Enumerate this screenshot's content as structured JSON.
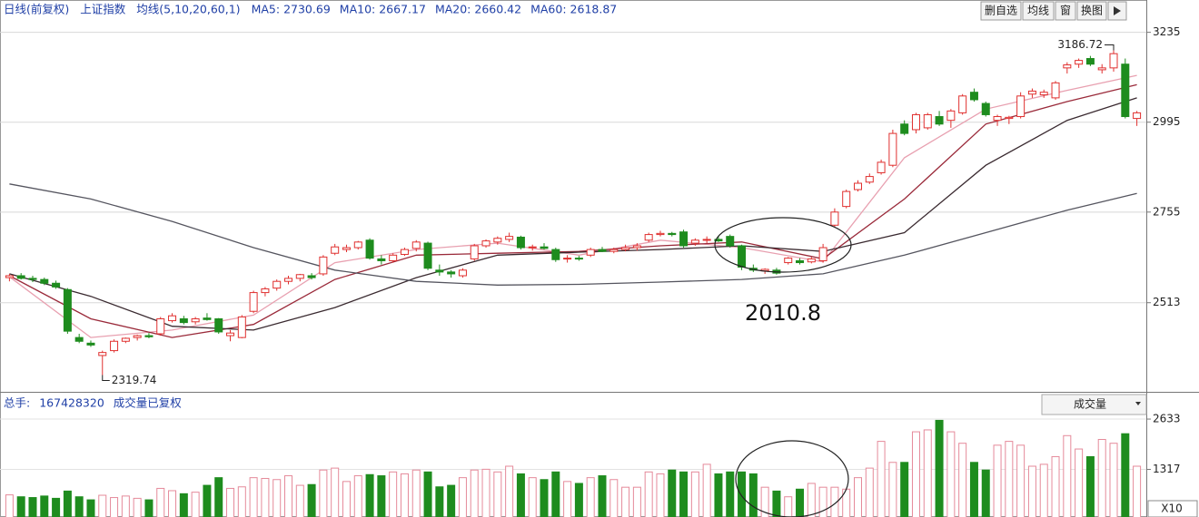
{
  "chart_data": {
    "type": "candlestick",
    "header": [
      "日线(前复权)",
      "上证指数",
      "均线(5,10,20,60,1)"
    ],
    "buttons": [
      "删自选",
      "均线",
      "窗",
      "换图"
    ],
    "up_color": "#e0302f",
    "down_color": "#1e8c1e",
    "ylim": [
      2275,
      3268
    ],
    "yticks": [
      2513,
      2755,
      2995,
      3235
    ],
    "grid": true,
    "high_label": "3186.72",
    "low_label": "2319.74",
    "annotation": "2010.8",
    "candles": {
      "open": [
        2580,
        2585,
        2578,
        2575,
        2565,
        2548,
        2420,
        2405,
        2372,
        2385,
        2410,
        2420,
        2425,
        2430,
        2465,
        2470,
        2462,
        2472,
        2470,
        2425,
        2420,
        2490,
        2540,
        2552,
        2570,
        2578,
        2585,
        2590,
        2645,
        2655,
        2660,
        2680,
        2630,
        2625,
        2642,
        2658,
        2672,
        2600,
        2595,
        2585,
        2630,
        2665,
        2675,
        2682,
        2688,
        2660,
        2662,
        2655,
        2630,
        2632,
        2640,
        2655,
        2650,
        2655,
        2660,
        2680,
        2695,
        2698,
        2702,
        2672,
        2680,
        2682,
        2690,
        2665,
        2605,
        2598,
        2600,
        2620,
        2625,
        2622,
        2625,
        2720,
        2770,
        2815,
        2835,
        2860,
        2880,
        2990,
        2975,
        2980,
        3010,
        3000,
        3020,
        3075,
        3045,
        3000,
        3005,
        3010,
        3070,
        3068,
        3060,
        3140,
        3150,
        3165,
        3135,
        3140,
        3150,
        3005
      ],
      "high": [
        2590,
        2592,
        2585,
        2580,
        2572,
        2552,
        2430,
        2412,
        2385,
        2415,
        2420,
        2428,
        2432,
        2475,
        2485,
        2478,
        2475,
        2485,
        2472,
        2440,
        2480,
        2545,
        2555,
        2575,
        2585,
        2590,
        2592,
        2640,
        2670,
        2668,
        2678,
        2685,
        2640,
        2645,
        2660,
        2680,
        2676,
        2615,
        2600,
        2605,
        2670,
        2682,
        2690,
        2700,
        2692,
        2668,
        2672,
        2660,
        2640,
        2638,
        2660,
        2662,
        2660,
        2668,
        2672,
        2700,
        2705,
        2702,
        2708,
        2685,
        2690,
        2692,
        2695,
        2668,
        2615,
        2605,
        2606,
        2635,
        2632,
        2635,
        2670,
        2765,
        2815,
        2840,
        2858,
        2895,
        2975,
        3000,
        3020,
        3020,
        3025,
        3030,
        3070,
        3085,
        3050,
        3015,
        3012,
        3075,
        3085,
        3082,
        3105,
        3155,
        3165,
        3172,
        3150,
        3186.72,
        3165,
        3025
      ],
      "low": [
        2570,
        2575,
        2568,
        2560,
        2550,
        2430,
        2405,
        2395,
        2319.74,
        2380,
        2405,
        2412,
        2418,
        2425,
        2460,
        2455,
        2455,
        2465,
        2430,
        2410,
        2418,
        2485,
        2530,
        2545,
        2562,
        2570,
        2575,
        2585,
        2640,
        2648,
        2655,
        2628,
        2615,
        2620,
        2638,
        2650,
        2600,
        2585,
        2580,
        2580,
        2625,
        2660,
        2668,
        2675,
        2655,
        2652,
        2655,
        2622,
        2620,
        2625,
        2635,
        2648,
        2645,
        2650,
        2652,
        2675,
        2690,
        2690,
        2660,
        2665,
        2672,
        2675,
        2660,
        2600,
        2595,
        2590,
        2588,
        2615,
        2615,
        2618,
        2620,
        2715,
        2765,
        2810,
        2830,
        2855,
        2875,
        2960,
        2965,
        2975,
        2985,
        2980,
        3015,
        3050,
        3010,
        2985,
        2990,
        3005,
        3060,
        3060,
        3055,
        3125,
        3140,
        3145,
        3125,
        3130,
        3005,
        2985
      ],
      "close": [
        2585,
        2578,
        2575,
        2565,
        2555,
        2437,
        2410,
        2400,
        2380,
        2410,
        2418,
        2425,
        2422,
        2470,
        2478,
        2460,
        2470,
        2468,
        2435,
        2432,
        2475,
        2540,
        2550,
        2570,
        2578,
        2588,
        2580,
        2635,
        2662,
        2660,
        2675,
        2632,
        2625,
        2640,
        2655,
        2675,
        2605,
        2595,
        2590,
        2600,
        2665,
        2678,
        2685,
        2690,
        2660,
        2662,
        2658,
        2628,
        2632,
        2630,
        2655,
        2650,
        2655,
        2660,
        2665,
        2695,
        2698,
        2695,
        2665,
        2680,
        2682,
        2678,
        2665,
        2608,
        2600,
        2602,
        2592,
        2632,
        2620,
        2630,
        2660,
        2755,
        2810,
        2832,
        2850,
        2888,
        2965,
        2965,
        3015,
        3015,
        2990,
        3025,
        3065,
        3055,
        3015,
        3010,
        3008,
        3065,
        3078,
        3075,
        3100,
        3148,
        3160,
        3150,
        3140,
        3178,
        3010,
        3020
      ]
    },
    "ma": [
      {
        "name": "MA5:",
        "readout": 2730.69,
        "color": "#e8a0b0",
        "x": [
          0,
          7,
          14,
          21,
          28,
          35,
          42,
          49,
          56,
          63,
          70,
          77,
          84,
          91,
          97
        ],
        "values": [
          2582,
          2420,
          2440,
          2480,
          2620,
          2655,
          2672,
          2640,
          2680,
          2660,
          2622,
          2900,
          3030,
          3080,
          3120
        ]
      },
      {
        "name": "MA10:",
        "readout": 2667.17,
        "color": "#9a2a3a",
        "x": [
          0,
          7,
          14,
          21,
          28,
          35,
          42,
          49,
          56,
          63,
          70,
          77,
          84,
          91,
          97
        ],
        "values": [
          2585,
          2470,
          2420,
          2455,
          2575,
          2640,
          2645,
          2650,
          2665,
          2675,
          2630,
          2790,
          2990,
          3050,
          3095
        ]
      },
      {
        "name": "MA20:",
        "readout": 2660.42,
        "color": "#3a2a30",
        "x": [
          0,
          7,
          14,
          21,
          28,
          35,
          42,
          49,
          56,
          63,
          70,
          77,
          84,
          91,
          97
        ],
        "values": [
          2590,
          2530,
          2450,
          2440,
          2500,
          2580,
          2640,
          2648,
          2655,
          2665,
          2650,
          2700,
          2880,
          3000,
          3060
        ]
      },
      {
        "name": "MA60:",
        "readout": 2618.87,
        "color": "#55555f",
        "x": [
          0,
          7,
          14,
          21,
          28,
          35,
          42,
          49,
          56,
          63,
          70,
          77,
          84,
          91,
          97
        ],
        "values": [
          2830,
          2790,
          2730,
          2660,
          2600,
          2570,
          2560,
          2562,
          2568,
          2575,
          2590,
          2640,
          2700,
          2760,
          2805
        ]
      }
    ],
    "volume": {
      "label": "总手:",
      "total": 167428320,
      "note": "成交量已复权",
      "selector": "成交量",
      "unit": "X10",
      "ylim": [
        0,
        2800
      ],
      "yticks": [
        1317,
        2633
      ],
      "values": [
        650,
        600,
        580,
        620,
        560,
        750,
        600,
        520,
        640,
        580,
        620,
        560,
        520,
        820,
        760,
        680,
        720,
        900,
        1100,
        820,
        860,
        1100,
        1080,
        1050,
        1150,
        900,
        920,
        1300,
        1350,
        1000,
        1150,
        1180,
        1150,
        1250,
        1200,
        1300,
        1250,
        860,
        900,
        1100,
        1300,
        1320,
        1250,
        1400,
        1200,
        1100,
        1050,
        1250,
        1000,
        950,
        1100,
        1150,
        1050,
        850,
        850,
        1250,
        1200,
        1300,
        1250,
        1250,
        1450,
        1200,
        1250,
        1250,
        1200,
        850,
        750,
        600,
        800,
        950,
        850,
        850,
        800,
        1100,
        1350,
        2050,
        1500,
        1500,
        2300,
        2350,
        2600,
        2300,
        2000,
        1500,
        1300,
        1950,
        2050,
        1950,
        1400,
        1450,
        1650,
        2200,
        1850,
        1650,
        2100,
        2000,
        2250,
        1400
      ]
    }
  }
}
